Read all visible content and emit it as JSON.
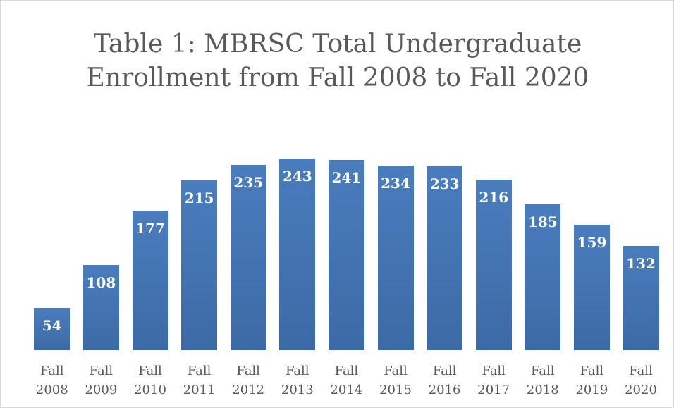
{
  "chart_data": {
    "type": "bar",
    "title": "Table 1: MBRSC Total Undergraduate Enrollment from Fall 2008 to Fall 2020",
    "categories": [
      "Fall 2008",
      "Fall 2009",
      "Fall 2010",
      "Fall 2011",
      "Fall 2012",
      "Fall 2013",
      "Fall 2014",
      "Fall 2015",
      "Fall 2016",
      "Fall 2017",
      "Fall 2018",
      "Fall 2019",
      "Fall 2020"
    ],
    "values": [
      54,
      108,
      177,
      215,
      235,
      243,
      241,
      234,
      233,
      216,
      185,
      159,
      132
    ],
    "color": "#4a7dbd"
  }
}
